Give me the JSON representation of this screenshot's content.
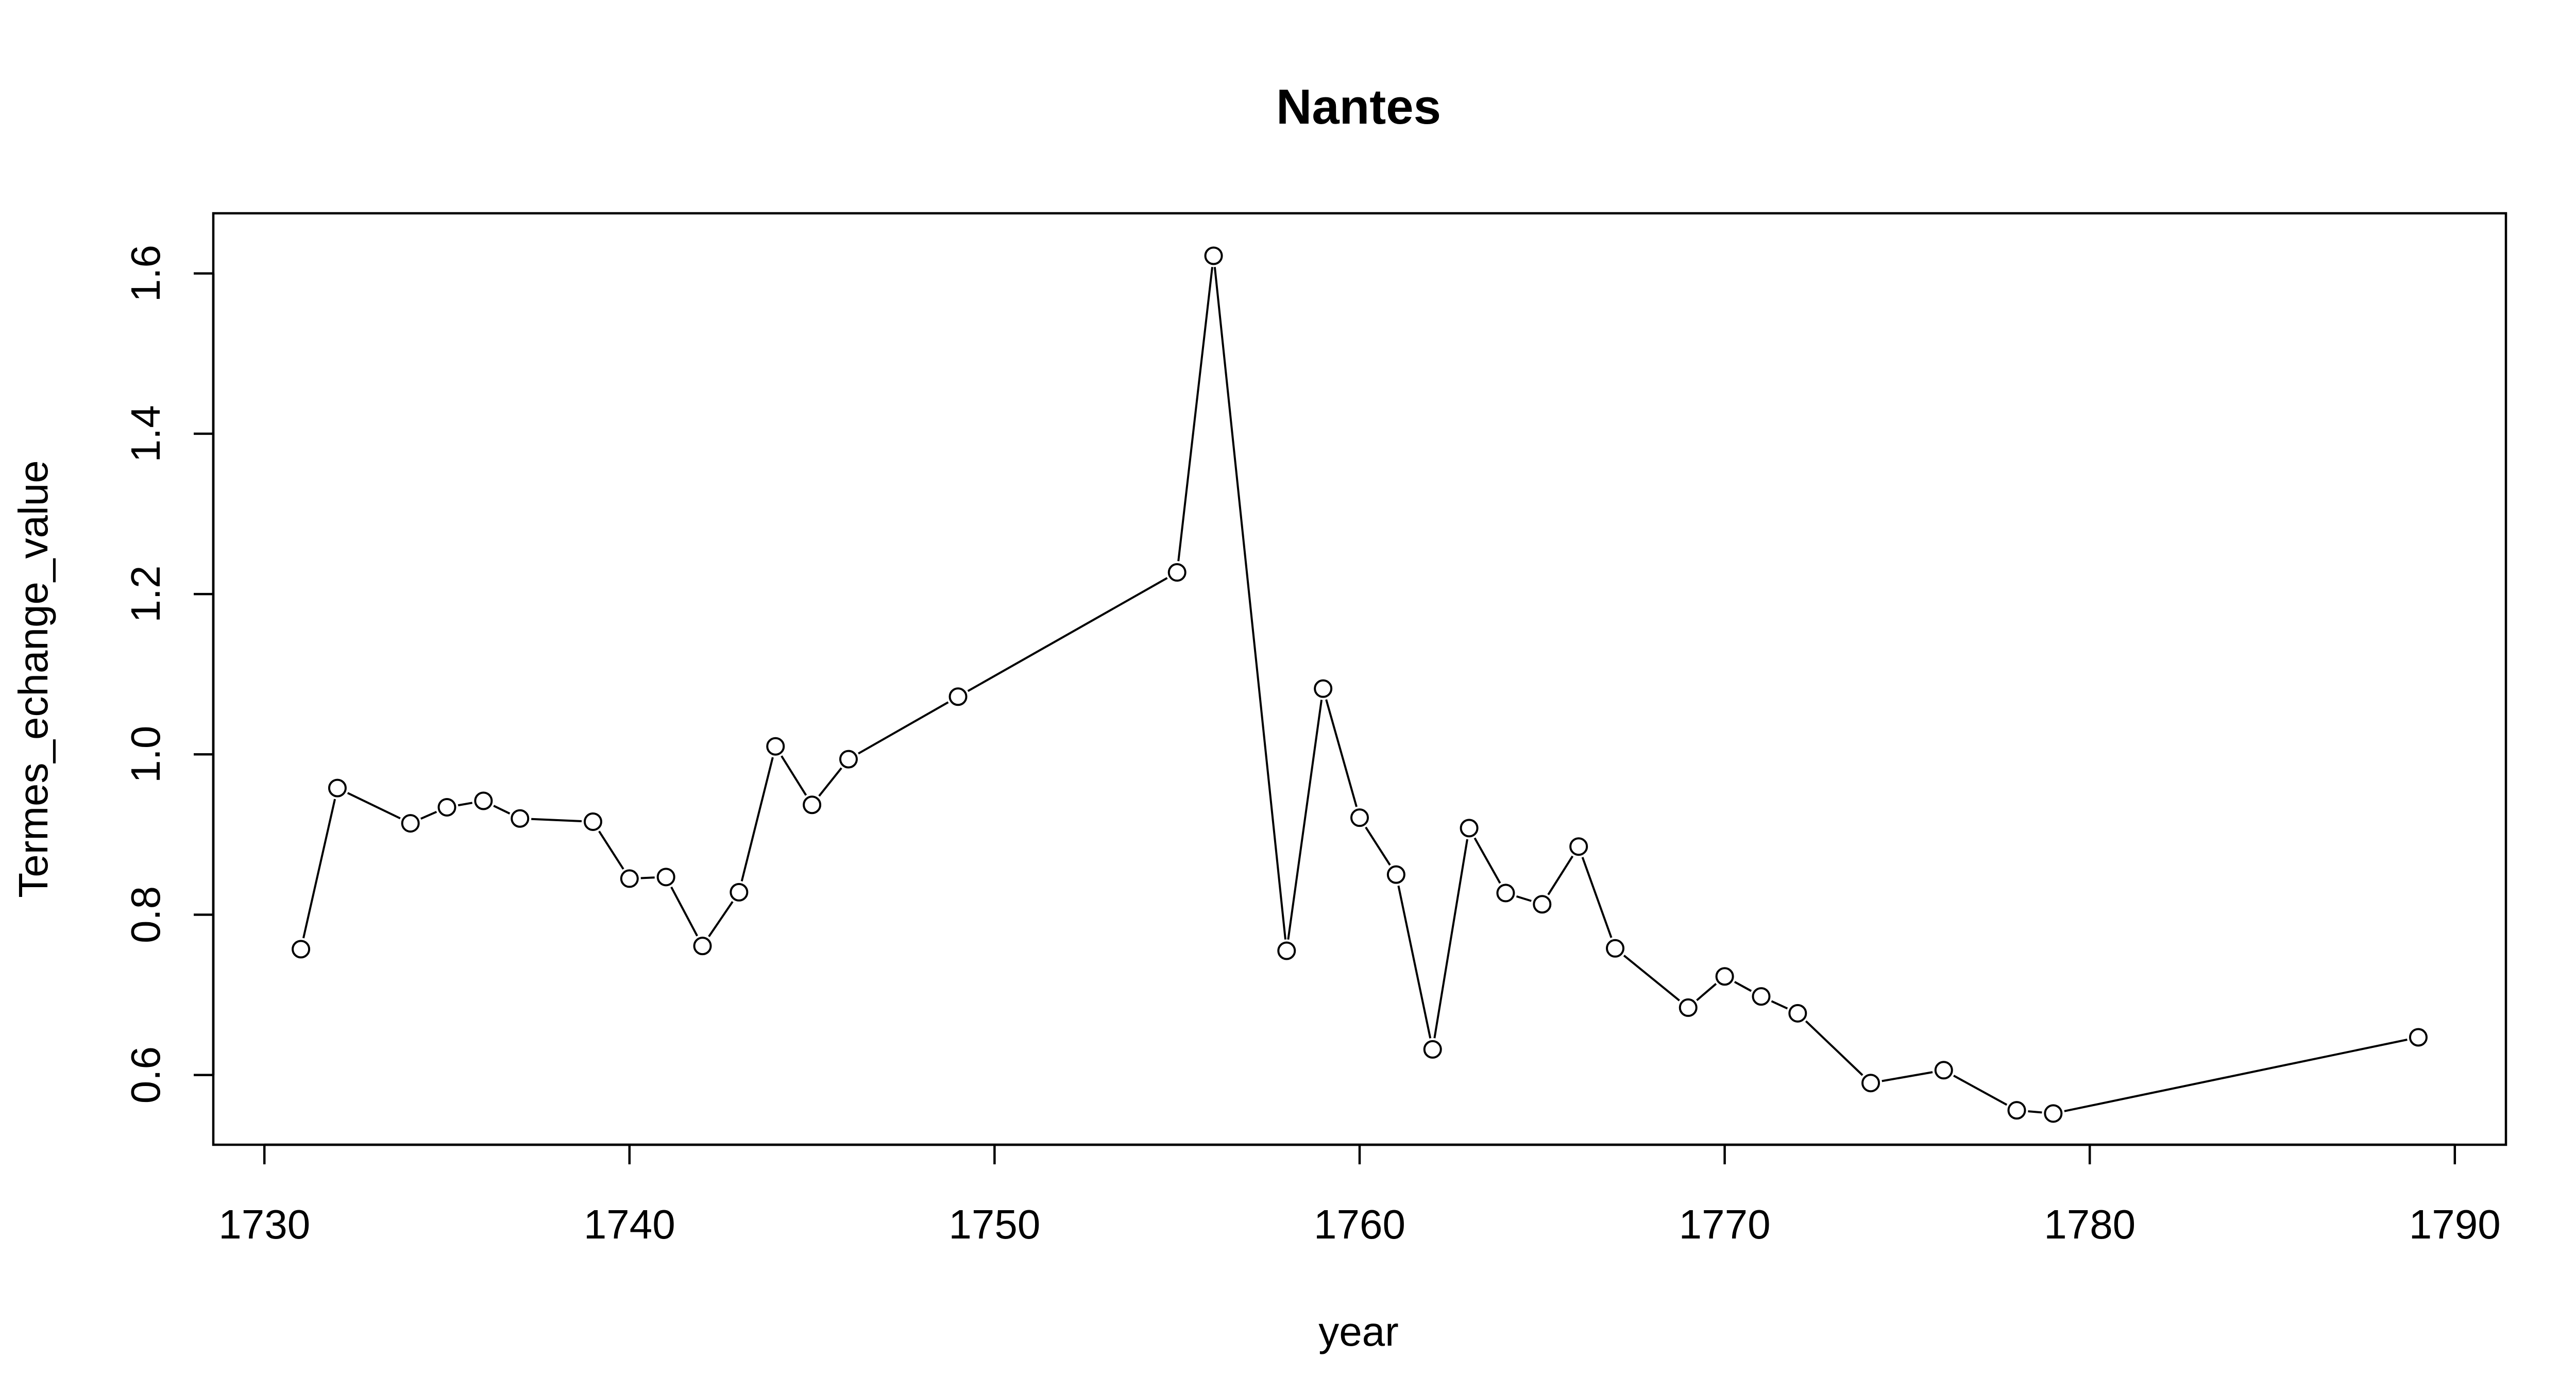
{
  "chart_data": {
    "type": "line",
    "title": "Nantes",
    "xlabel": "year",
    "ylabel": "Termes_echange_value",
    "xlim": [
      1728.6,
      1791.4
    ],
    "ylim": [
      0.513,
      1.675
    ],
    "x_ticks": [
      1730,
      1740,
      1750,
      1760,
      1770,
      1780,
      1790
    ],
    "y_ticks": [
      0.6,
      0.8,
      1.0,
      1.2,
      1.4,
      1.6
    ],
    "x_tick_labels": [
      "1730",
      "1740",
      "1750",
      "1760",
      "1770",
      "1780",
      "1790"
    ],
    "y_tick_labels": [
      "0.6",
      "0.8",
      "1.0",
      "1.2",
      "1.4",
      "1.6"
    ],
    "grid": false,
    "legend": "none",
    "marker": "open-circle",
    "series": [
      {
        "x": [
          1731,
          1732,
          1734,
          1735,
          1736,
          1737,
          1739,
          1740,
          1741,
          1742,
          1743,
          1744,
          1745,
          1746,
          1749,
          1755,
          1756,
          1758,
          1759,
          1760,
          1761,
          1762,
          1763,
          1764,
          1765,
          1766,
          1767,
          1769,
          1770,
          1771,
          1772,
          1774,
          1776,
          1778,
          1779,
          1789
        ],
        "y": [
          0.757,
          0.958,
          0.914,
          0.934,
          0.942,
          0.92,
          0.916,
          0.845,
          0.847,
          0.761,
          0.828,
          1.01,
          0.937,
          0.994,
          1.072,
          1.227,
          1.622,
          0.755,
          1.082,
          0.921,
          0.85,
          0.632,
          0.908,
          0.827,
          0.813,
          0.885,
          0.758,
          0.684,
          0.723,
          0.698,
          0.677,
          0.59,
          0.606,
          0.556,
          0.552,
          0.647
        ]
      }
    ]
  }
}
